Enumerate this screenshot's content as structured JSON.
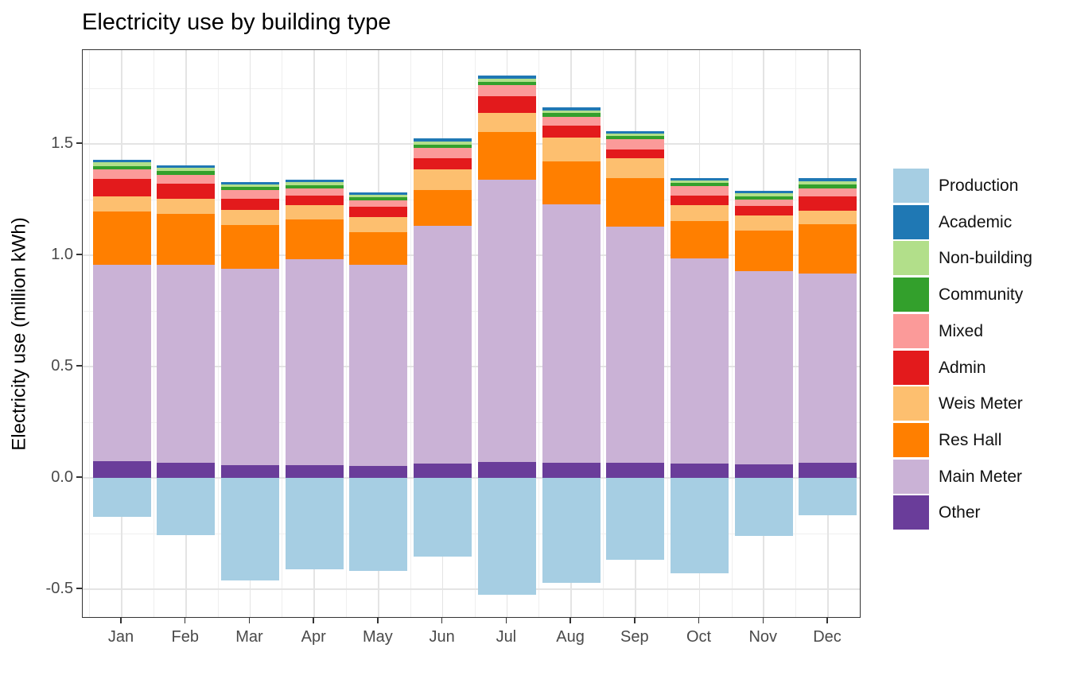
{
  "title": "Electricity use by building type",
  "chart_data": {
    "type": "bar",
    "stacked": true,
    "orientation": "vertical",
    "title": "Electricity use by building type",
    "xlabel": "",
    "ylabel": "Electricity use (million kWh)",
    "units": "million kWh",
    "categories": [
      "Jan",
      "Feb",
      "Mar",
      "Apr",
      "May",
      "Jun",
      "Jul",
      "Aug",
      "Sep",
      "Oct",
      "Nov",
      "Dec"
    ],
    "y_tick_labels": [
      "-0.5",
      "0.0",
      "0.5",
      "1.0",
      "1.5"
    ],
    "y_tick_values": [
      -0.5,
      0.0,
      0.5,
      1.0,
      1.5
    ],
    "ylim": [
      -0.632,
      1.921
    ],
    "grid": {
      "major_step": 0.5,
      "minor_step": 0.25,
      "style": "gray lines on white, black panel border"
    },
    "legend_position": "right",
    "negative_series": "Production",
    "stack_order_bottom_to_top": [
      "Other",
      "Main Meter",
      "Res Hall",
      "Weis Meter",
      "Admin",
      "Mixed",
      "Community",
      "Non-building",
      "Academic"
    ],
    "series": [
      {
        "name": "Production",
        "color": "#A6CEE3",
        "values": [
          -0.175,
          -0.258,
          -0.461,
          -0.411,
          -0.419,
          -0.354,
          -0.524,
          -0.47,
          -0.367,
          -0.429,
          -0.262,
          -0.167
        ]
      },
      {
        "name": "Academic",
        "color": "#1F78B4",
        "values": [
          0.013,
          0.012,
          0.012,
          0.012,
          0.012,
          0.014,
          0.014,
          0.012,
          0.012,
          0.012,
          0.012,
          0.015
        ]
      },
      {
        "name": "Non-building",
        "color": "#B2DF8A",
        "values": [
          0.017,
          0.014,
          0.012,
          0.012,
          0.01,
          0.012,
          0.012,
          0.012,
          0.009,
          0.011,
          0.012,
          0.015
        ]
      },
      {
        "name": "Community",
        "color": "#33A02C",
        "values": [
          0.016,
          0.018,
          0.014,
          0.014,
          0.012,
          0.016,
          0.015,
          0.017,
          0.015,
          0.013,
          0.015,
          0.017
        ]
      },
      {
        "name": "Mixed",
        "color": "#FB9A99",
        "values": [
          0.042,
          0.04,
          0.038,
          0.033,
          0.03,
          0.048,
          0.051,
          0.039,
          0.045,
          0.044,
          0.027,
          0.035
        ]
      },
      {
        "name": "Admin",
        "color": "#E31A1C",
        "values": [
          0.077,
          0.067,
          0.052,
          0.042,
          0.045,
          0.047,
          0.075,
          0.056,
          0.042,
          0.042,
          0.044,
          0.067
        ]
      },
      {
        "name": "Weis Meter",
        "color": "#FDBF6F",
        "values": [
          0.069,
          0.067,
          0.067,
          0.065,
          0.069,
          0.095,
          0.085,
          0.105,
          0.086,
          0.073,
          0.069,
          0.06
        ]
      },
      {
        "name": "Res Hall",
        "color": "#FF7F00",
        "values": [
          0.238,
          0.231,
          0.195,
          0.179,
          0.148,
          0.161,
          0.215,
          0.193,
          0.219,
          0.167,
          0.181,
          0.221
        ]
      },
      {
        "name": "Main Meter",
        "color": "#CAB2D6",
        "values": [
          0.883,
          0.888,
          0.884,
          0.926,
          0.902,
          1.068,
          1.268,
          1.161,
          1.061,
          0.921,
          0.869,
          0.85
        ]
      },
      {
        "name": "Other",
        "color": "#6A3D9A",
        "values": [
          0.075,
          0.068,
          0.056,
          0.056,
          0.054,
          0.063,
          0.071,
          0.068,
          0.068,
          0.065,
          0.06,
          0.068
        ]
      }
    ]
  },
  "style_colors": {
    "axis_text": "#4a4a4a",
    "grid_major": "#e4e4e4",
    "grid_minor": "#efefef",
    "panel_border": "#333333",
    "tick_mark": "#333333",
    "background": "#ffffff"
  }
}
